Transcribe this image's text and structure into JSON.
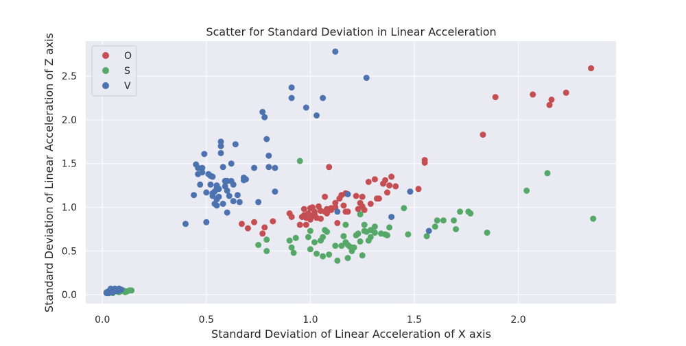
{
  "chart_data": {
    "type": "scatter",
    "title": "Scatter for Standard Deviation in Linear Acceleration",
    "xlabel": "Standard Deviation of Linear Acceleration of X axis",
    "ylabel": "Standard Deviation of Linear Acceleration of Z axis",
    "xlim": [
      -0.08,
      2.47
    ],
    "ylim": [
      -0.1,
      2.9
    ],
    "xticks": [
      0.0,
      0.5,
      1.0,
      1.5,
      2.0
    ],
    "xtick_labels": [
      "0.0",
      "0.5",
      "1.0",
      "1.5",
      "2.0"
    ],
    "yticks": [
      0.0,
      0.5,
      1.0,
      1.5,
      2.0,
      2.5
    ],
    "ytick_labels": [
      "0.0",
      "0.5",
      "1.0",
      "1.5",
      "2.0",
      "2.5"
    ],
    "grid": true,
    "legend_position": "top-left",
    "background_color": "#eaeaf2",
    "series": [
      {
        "name": "O",
        "color": "#c44e52",
        "x": [
          0.67,
          0.7,
          0.73,
          0.77,
          0.78,
          0.82,
          0.9,
          0.91,
          0.95,
          0.96,
          0.97,
          0.98,
          0.99,
          1.0,
          1.01,
          1.01,
          1.02,
          1.02,
          1.03,
          1.04,
          1.05,
          1.07,
          1.07,
          1.08,
          1.09,
          1.1,
          1.12,
          1.13,
          1.14,
          1.15,
          1.16,
          1.17,
          1.17,
          1.18,
          1.22,
          1.24,
          1.25,
          1.25,
          1.26,
          1.28,
          1.29,
          1.31,
          1.32,
          1.33,
          1.35,
          1.36,
          1.37,
          1.38,
          1.39,
          1.41,
          1.52,
          1.55,
          1.55,
          1.83,
          1.89,
          2.07,
          2.15,
          2.16,
          2.23,
          2.35,
          1.0,
          1.05,
          0.97,
          1.23,
          1.08,
          0.98,
          1.12,
          1.1
        ],
        "y": [
          0.81,
          0.76,
          0.83,
          0.7,
          0.77,
          0.84,
          0.93,
          0.89,
          0.8,
          0.89,
          0.98,
          0.8,
          0.93,
          0.86,
          1.0,
          0.9,
          0.92,
          0.95,
          0.88,
          1.01,
          0.96,
          0.95,
          1.12,
          0.98,
          1.46,
          0.99,
          1.0,
          0.82,
          1.1,
          1.14,
          1.02,
          0.95,
          1.16,
          0.95,
          1.13,
          1.05,
          1.01,
          1.12,
          0.97,
          1.29,
          1.04,
          1.32,
          1.1,
          1.1,
          1.27,
          1.31,
          1.17,
          1.25,
          1.35,
          1.24,
          1.21,
          1.51,
          1.54,
          1.83,
          2.26,
          2.29,
          2.17,
          2.23,
          2.31,
          2.59,
          0.99,
          0.87,
          0.91,
          0.98,
          0.93,
          0.88,
          1.05,
          0.97
        ]
      },
      {
        "name": "S",
        "color": "#55a868",
        "x": [
          0.75,
          0.79,
          0.79,
          0.9,
          0.91,
          0.92,
          0.93,
          0.95,
          0.99,
          1.0,
          1.02,
          1.03,
          1.05,
          1.06,
          1.07,
          1.08,
          1.09,
          1.12,
          1.13,
          1.15,
          1.16,
          1.17,
          1.17,
          1.18,
          1.18,
          1.2,
          1.21,
          1.22,
          1.24,
          1.24,
          1.25,
          1.26,
          1.27,
          1.28,
          1.29,
          1.31,
          1.31,
          1.34,
          1.36,
          1.37,
          1.38,
          1.45,
          1.47,
          1.56,
          1.6,
          1.61,
          1.64,
          1.69,
          1.7,
          1.72,
          1.76,
          1.77,
          1.85,
          2.04,
          2.14,
          2.36,
          1.0,
          1.06,
          1.19,
          1.23,
          1.26,
          1.29
        ],
        "y": [
          0.57,
          0.5,
          0.63,
          0.62,
          0.54,
          0.48,
          0.65,
          1.53,
          0.66,
          0.73,
          0.6,
          0.47,
          0.62,
          0.44,
          0.74,
          0.72,
          0.46,
          0.56,
          0.39,
          0.56,
          0.67,
          0.8,
          0.6,
          0.42,
          0.57,
          0.5,
          0.54,
          0.68,
          0.92,
          0.61,
          0.45,
          0.8,
          0.72,
          0.62,
          0.74,
          0.78,
          0.71,
          0.7,
          0.69,
          0.68,
          0.77,
          0.99,
          0.69,
          0.67,
          0.78,
          0.85,
          0.85,
          0.85,
          0.75,
          0.95,
          0.95,
          0.93,
          0.71,
          1.19,
          1.39,
          0.87,
          0.52,
          0.66,
          0.55,
          0.7,
          0.73,
          0.66
        ]
      },
      {
        "name": "V",
        "color": "#4c72b0",
        "x": [
          0.4,
          0.44,
          0.45,
          0.46,
          0.47,
          0.48,
          0.49,
          0.5,
          0.5,
          0.51,
          0.52,
          0.53,
          0.53,
          0.54,
          0.54,
          0.55,
          0.55,
          0.56,
          0.56,
          0.57,
          0.57,
          0.58,
          0.58,
          0.59,
          0.59,
          0.6,
          0.6,
          0.61,
          0.62,
          0.62,
          0.63,
          0.63,
          0.64,
          0.65,
          0.66,
          0.68,
          0.68,
          0.69,
          0.73,
          0.75,
          0.77,
          0.78,
          0.79,
          0.8,
          0.8,
          0.83,
          0.83,
          0.91,
          0.91,
          0.98,
          1.03,
          1.06,
          1.12,
          1.13,
          1.18,
          1.27,
          1.39,
          1.48,
          1.57,
          0.46,
          0.52,
          0.55,
          0.57,
          0.6,
          0.55,
          0.53,
          0.48
        ],
        "y": [
          0.81,
          1.14,
          1.49,
          1.38,
          1.26,
          1.45,
          1.61,
          0.83,
          1.17,
          1.38,
          1.36,
          1.35,
          1.13,
          1.04,
          1.18,
          1.25,
          1.02,
          1.21,
          1.12,
          1.75,
          1.7,
          1.46,
          1.04,
          1.24,
          1.3,
          1.19,
          1.3,
          1.13,
          1.3,
          1.5,
          1.07,
          1.26,
          1.72,
          1.14,
          1.06,
          1.31,
          1.34,
          1.32,
          1.45,
          1.06,
          2.09,
          2.03,
          1.78,
          1.46,
          1.59,
          1.18,
          1.45,
          2.37,
          2.25,
          2.14,
          2.05,
          2.25,
          2.78,
          0.95,
          1.15,
          2.48,
          0.89,
          1.18,
          0.73,
          1.45,
          1.26,
          1.22,
          1.62,
          0.94,
          1.09,
          1.16,
          1.4
        ]
      },
      {
        "name": "",
        "color": "#55a868",
        "x": [
          0.02,
          0.03,
          0.04,
          0.05,
          0.06,
          0.07,
          0.08,
          0.09,
          0.1,
          0.11,
          0.12,
          0.13,
          0.14,
          0.05,
          0.08,
          0.11
        ],
        "y": [
          0.03,
          0.02,
          0.04,
          0.03,
          0.05,
          0.04,
          0.03,
          0.04,
          0.05,
          0.04,
          0.04,
          0.05,
          0.05,
          0.02,
          0.05,
          0.03
        ]
      },
      {
        "name": "",
        "color": "#4c72b0",
        "x": [
          0.02,
          0.03,
          0.03,
          0.04,
          0.04,
          0.05,
          0.05,
          0.06,
          0.06,
          0.07,
          0.07,
          0.08,
          0.08,
          0.09,
          0.03,
          0.05,
          0.07
        ],
        "y": [
          0.02,
          0.03,
          0.04,
          0.03,
          0.07,
          0.04,
          0.06,
          0.05,
          0.07,
          0.04,
          0.06,
          0.05,
          0.07,
          0.06,
          0.02,
          0.03,
          0.05
        ]
      }
    ]
  }
}
